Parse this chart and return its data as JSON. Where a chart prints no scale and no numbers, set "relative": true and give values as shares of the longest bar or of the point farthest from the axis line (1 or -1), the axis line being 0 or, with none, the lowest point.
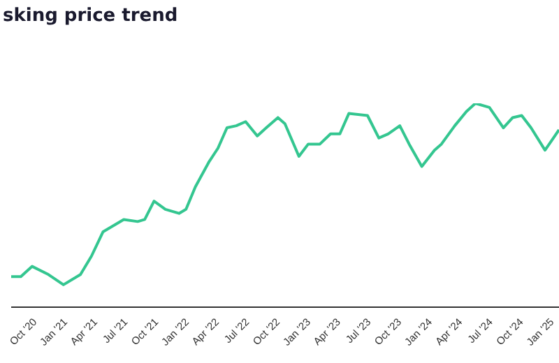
{
  "chart_data": {
    "type": "line",
    "title": "sking price trend",
    "relative": true,
    "color": "#34c690",
    "marker": "none",
    "legend": false,
    "grid": false,
    "x": [
      "2020-07-23",
      "2020-08-21",
      "2020-09-24",
      "2020-11-12",
      "2020-12-27",
      "2021-02-16",
      "2021-03-21",
      "2021-04-25",
      "2021-06-26",
      "2021-08-07",
      "2021-08-28",
      "2021-09-25",
      "2021-10-29",
      "2021-12-09",
      "2021-12-30",
      "2022-01-27",
      "2022-03-08",
      "2022-04-05",
      "2022-05-02",
      "2022-05-30",
      "2022-06-27",
      "2022-08-01",
      "2022-08-28",
      "2022-10-02",
      "2022-10-23",
      "2022-12-04",
      "2023-01-01",
      "2023-02-05",
      "2023-03-09",
      "2023-04-06",
      "2023-05-03",
      "2023-06-28",
      "2023-08-01",
      "2023-08-29",
      "2023-10-03",
      "2023-10-31",
      "2023-12-08",
      "2024-01-15",
      "2024-02-05",
      "2024-03-16",
      "2024-04-20",
      "2024-05-17",
      "2024-06-28",
      "2024-08-09",
      "2024-09-06",
      "2024-10-03",
      "2024-10-31",
      "2024-12-12",
      "2025-01-02",
      "2025-01-23"
    ],
    "values": [
      0.15,
      0.15,
      0.2,
      0.16,
      0.11,
      0.16,
      0.25,
      0.37,
      0.43,
      0.42,
      0.43,
      0.52,
      0.48,
      0.46,
      0.48,
      0.59,
      0.71,
      0.78,
      0.88,
      0.89,
      0.91,
      0.84,
      0.88,
      0.93,
      0.9,
      0.74,
      0.8,
      0.8,
      0.85,
      0.85,
      0.95,
      0.94,
      0.83,
      0.85,
      0.89,
      0.8,
      0.69,
      0.77,
      0.8,
      0.89,
      0.96,
      1,
      0.98,
      0.88,
      0.93,
      0.94,
      0.88,
      0.77,
      0.82,
      0.87
    ],
    "xlim": [
      "2020-07-23",
      "2025-01-23"
    ],
    "xticks": [
      {
        "value": "2020-10-01",
        "label": "Oct '20"
      },
      {
        "value": "2021-01-01",
        "label": "Jan '21"
      },
      {
        "value": "2021-04-01",
        "label": "Apr '21"
      },
      {
        "value": "2021-07-01",
        "label": "Jul '21"
      },
      {
        "value": "2021-10-01",
        "label": "Oct '21"
      },
      {
        "value": "2022-01-01",
        "label": "Jan '22"
      },
      {
        "value": "2022-04-01",
        "label": "Apr '22"
      },
      {
        "value": "2022-07-01",
        "label": "Jul '22"
      },
      {
        "value": "2022-10-01",
        "label": "Oct '22"
      },
      {
        "value": "2023-01-01",
        "label": "Jan '23"
      },
      {
        "value": "2023-04-01",
        "label": "Apr '23"
      },
      {
        "value": "2023-07-01",
        "label": "Jul '23"
      },
      {
        "value": "2023-10-01",
        "label": "Oct '23"
      },
      {
        "value": "2024-01-01",
        "label": "Jan '24"
      },
      {
        "value": "2024-04-01",
        "label": "Apr '24"
      },
      {
        "value": "2024-07-01",
        "label": "Jul '24"
      },
      {
        "value": "2024-10-01",
        "label": "Oct '24"
      },
      {
        "value": "2025-01-01",
        "label": "Jan '25"
      }
    ]
  }
}
